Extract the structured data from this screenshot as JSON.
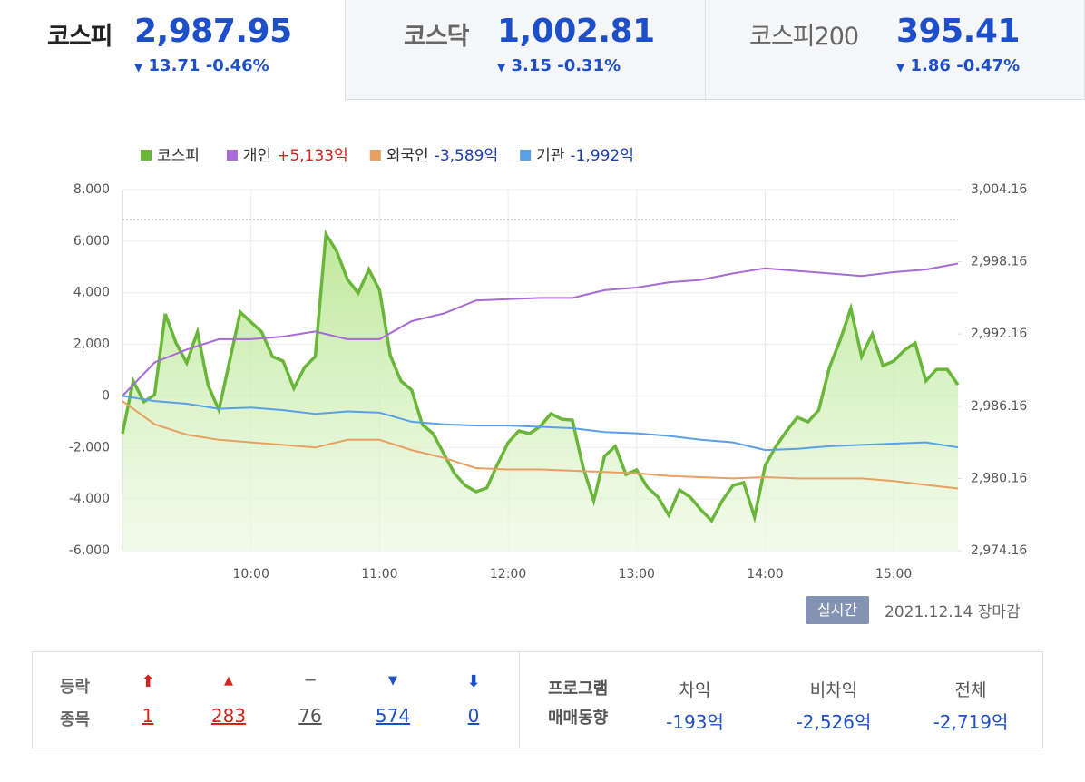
{
  "tabs": [
    {
      "name": "코스피",
      "value": "2,987.95",
      "change": "13.71",
      "rate": "-0.46%"
    },
    {
      "name": "코스닥",
      "value": "1,002.81",
      "change": "3.15",
      "rate": "-0.31%"
    },
    {
      "name": "코스피200",
      "value": "395.41",
      "change": "1.86",
      "rate": "-0.47%"
    }
  ],
  "chart_data": {
    "type": "line",
    "xlim": [
      "09:00",
      "15:30"
    ],
    "xticks": [
      "10:00",
      "11:00",
      "12:00",
      "13:00",
      "14:00",
      "15:00"
    ],
    "ylim": [
      -6000,
      8000
    ],
    "yticks": [
      {
        "value": 8000,
        "label": "8,000"
      },
      {
        "value": 6000,
        "label": "6,000"
      },
      {
        "value": 4000,
        "label": "4,000"
      },
      {
        "value": 2000,
        "label": "2,000"
      },
      0,
      {
        "value": -2000,
        "label": "-2,000"
      },
      {
        "value": -4000,
        "label": "-4,000"
      },
      {
        "value": -6000,
        "label": "-6,000"
      }
    ],
    "y2lim": [
      2974.16,
      3004.16
    ],
    "y2ticks": [
      {
        "value": 3004.16,
        "label": "3,004.16"
      },
      {
        "value": 2998.16,
        "label": "2,998.16"
      },
      {
        "value": 2992.16,
        "label": "2,992.16"
      },
      {
        "value": 2986.16,
        "label": "2,986.16"
      },
      {
        "value": 2980.16,
        "label": "2,980.16"
      },
      {
        "value": 2974.16,
        "label": "2,974.16"
      }
    ],
    "reference_line": 3001.66,
    "grid": true,
    "series": [
      {
        "name": "코스피",
        "color": "#6ab63a",
        "axis": "y2",
        "fill": true,
        "x": [
          "09:00",
          "09:05",
          "09:10",
          "09:15",
          "09:20",
          "09:25",
          "09:30",
          "09:35",
          "09:40",
          "09:45",
          "09:50",
          "09:55",
          "10:00",
          "10:05",
          "10:10",
          "10:15",
          "10:20",
          "10:25",
          "10:30",
          "10:35",
          "10:40",
          "10:45",
          "10:50",
          "10:55",
          "11:00",
          "11:05",
          "11:10",
          "11:15",
          "11:20",
          "11:25",
          "11:30",
          "11:35",
          "11:40",
          "11:45",
          "11:50",
          "11:55",
          "12:00",
          "12:05",
          "12:10",
          "12:15",
          "12:20",
          "12:25",
          "12:30",
          "12:35",
          "12:40",
          "12:45",
          "12:50",
          "12:55",
          "13:00",
          "13:05",
          "13:10",
          "13:15",
          "13:20",
          "13:25",
          "13:30",
          "13:35",
          "13:40",
          "13:45",
          "13:50",
          "13:55",
          "14:00",
          "14:05",
          "14:10",
          "14:15",
          "14:20",
          "14:25",
          "14:30",
          "14:35",
          "14:40",
          "14:45",
          "14:50",
          "14:55",
          "15:00",
          "15:05",
          "15:10",
          "15:15",
          "15:20",
          "15:25",
          "15:30"
        ],
        "values": [
          2983.88,
          2988.26,
          2986.52,
          2987.12,
          2993.83,
          2991.42,
          2989.76,
          2992.33,
          2987.88,
          2985.84,
          2989.91,
          2993.98,
          2993.15,
          2992.33,
          2990.29,
          2989.91,
          2987.65,
          2989.39,
          2990.29,
          3000.47,
          2999.03,
          2996.7,
          2995.57,
          2997.53,
          2995.79,
          2990.37,
          2988.26,
          2987.5,
          2984.64,
          2983.88,
          2982.22,
          2980.57,
          2979.59,
          2979.06,
          2979.36,
          2981.32,
          2983.13,
          2984.11,
          2983.88,
          2984.49,
          2985.54,
          2985.09,
          2985.01,
          2981.09,
          2978.31,
          2982.0,
          2982.83,
          2980.49,
          2980.87,
          2979.44,
          2978.61,
          2977.1,
          2979.21,
          2978.61,
          2977.55,
          2976.65,
          2978.31,
          2979.59,
          2979.81,
          2976.95,
          2981.24,
          2982.83,
          2984.11,
          2985.24,
          2984.86,
          2985.84,
          2989.39,
          2991.65,
          2994.29,
          2990.29,
          2992.17,
          2989.54,
          2989.91,
          2990.82,
          2991.42,
          2988.26,
          2989.23,
          2989.23,
          2987.95
        ]
      },
      {
        "name": "개인",
        "total": "+5,133억",
        "total_color": "#d0251c",
        "color": "#a86ad6",
        "x": [
          "09:00",
          "09:15",
          "09:30",
          "09:45",
          "10:00",
          "10:15",
          "10:30",
          "10:45",
          "11:00",
          "11:15",
          "11:30",
          "11:45",
          "12:00",
          "12:15",
          "12:30",
          "12:45",
          "13:00",
          "13:15",
          "13:30",
          "13:45",
          "14:00",
          "14:15",
          "14:30",
          "14:45",
          "15:00",
          "15:15",
          "15:30"
        ],
        "values": [
          0,
          1300,
          1800,
          2200,
          2200,
          2300,
          2500,
          2200,
          2200,
          2900,
          3200,
          3700,
          3750,
          3800,
          3800,
          4100,
          4200,
          4400,
          4500,
          4750,
          4950,
          4850,
          4750,
          4650,
          4800,
          4900,
          5133
        ]
      },
      {
        "name": "외국인",
        "total": "-3,589억",
        "total_color": "#1c3fb5",
        "color": "#e8a060",
        "x": [
          "09:00",
          "09:15",
          "09:30",
          "09:45",
          "10:00",
          "10:15",
          "10:30",
          "10:45",
          "11:00",
          "11:15",
          "11:30",
          "11:45",
          "12:00",
          "12:15",
          "12:30",
          "12:45",
          "13:00",
          "13:15",
          "13:30",
          "13:45",
          "14:00",
          "14:15",
          "14:30",
          "14:45",
          "15:00",
          "15:15",
          "15:30"
        ],
        "values": [
          -200,
          -1100,
          -1500,
          -1700,
          -1800,
          -1900,
          -2000,
          -1700,
          -1700,
          -2100,
          -2400,
          -2800,
          -2850,
          -2850,
          -2900,
          -2950,
          -3000,
          -3100,
          -3150,
          -3200,
          -3150,
          -3200,
          -3200,
          -3200,
          -3300,
          -3450,
          -3589
        ]
      },
      {
        "name": "기관",
        "total": "-1,992억",
        "total_color": "#1c3fb5",
        "color": "#5aa0e8",
        "x": [
          "09:00",
          "09:15",
          "09:30",
          "09:45",
          "10:00",
          "10:15",
          "10:30",
          "10:45",
          "11:00",
          "11:15",
          "11:30",
          "11:45",
          "12:00",
          "12:15",
          "12:30",
          "12:45",
          "13:00",
          "13:15",
          "13:30",
          "13:45",
          "14:00",
          "14:15",
          "14:30",
          "14:45",
          "15:00",
          "15:15",
          "15:30"
        ],
        "values": [
          0,
          -200,
          -300,
          -500,
          -450,
          -550,
          -700,
          -600,
          -650,
          -1000,
          -1100,
          -1150,
          -1150,
          -1200,
          -1250,
          -1400,
          -1450,
          -1550,
          -1700,
          -1800,
          -2100,
          -2050,
          -1950,
          -1900,
          -1850,
          -1800,
          -1992
        ]
      }
    ]
  },
  "status": {
    "badge": "실시간",
    "date": "2021.12.14",
    "session": "장마감"
  },
  "breadth": {
    "label_top": "등락",
    "label_bottom": "종목",
    "upper_limit": "1",
    "up": "283",
    "flat": "76",
    "down": "574",
    "lower_limit": "0"
  },
  "program": {
    "label_top": "프로그램",
    "label_bottom": "매매동향",
    "columns": [
      {
        "name": "차익",
        "value": "-193억"
      },
      {
        "name": "비차익",
        "value": "-2,526억"
      },
      {
        "name": "전체",
        "value": "-2,719억"
      }
    ]
  }
}
